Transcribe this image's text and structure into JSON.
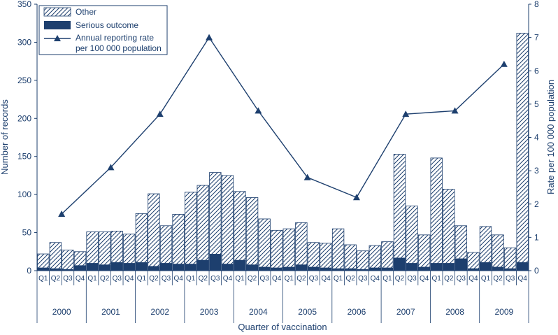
{
  "chart_data": {
    "type": "bar",
    "xlabel": "Quarter of vaccination",
    "ylabel": "Number of records",
    "y2label": "Rate per 100 000 population",
    "ylim": [
      0,
      350
    ],
    "y2lim": [
      0,
      8
    ],
    "yticks": [
      0,
      50,
      100,
      150,
      200,
      250,
      300,
      350
    ],
    "y2ticks": [
      0,
      1,
      2,
      3,
      4,
      5,
      6,
      7,
      8
    ],
    "quarters": [
      "Q1",
      "Q2",
      "Q3",
      "Q4"
    ],
    "years": [
      "2000",
      "2001",
      "2002",
      "2003",
      "2004",
      "2005",
      "2006",
      "2007",
      "2008",
      "2009"
    ],
    "series": [
      {
        "name": "Other",
        "pattern": "hatch",
        "total_values": [
          22,
          37,
          27,
          25,
          51,
          51,
          52,
          48,
          75,
          101,
          59,
          74,
          103,
          112,
          129,
          125,
          104,
          96,
          68,
          53,
          55,
          63,
          37,
          36,
          55,
          34,
          26,
          33,
          38,
          153,
          85,
          47,
          148,
          107,
          59,
          24,
          58,
          47,
          30,
          312
        ]
      },
      {
        "name": "Serious outcome",
        "color": "#1d3f6e",
        "values": [
          4,
          3,
          2,
          7,
          10,
          8,
          11,
          10,
          11,
          6,
          10,
          9,
          9,
          14,
          22,
          9,
          14,
          8,
          5,
          4,
          5,
          8,
          5,
          4,
          3,
          3,
          2,
          4,
          4,
          17,
          10,
          5,
          10,
          10,
          16,
          3,
          11,
          5,
          3,
          11
        ]
      },
      {
        "name": "Annual reporting rate per 100 000 population",
        "type": "line",
        "axis": "right",
        "x": [
          "2000",
          "2001",
          "2002",
          "2003",
          "2004",
          "2005",
          "2006",
          "2007",
          "2008",
          "2009"
        ],
        "values": [
          1.7,
          3.1,
          4.7,
          7.0,
          4.8,
          2.8,
          2.2,
          4.7,
          4.8,
          6.2
        ]
      }
    ],
    "legend": {
      "position": "top-left",
      "entries": [
        "Other",
        "Serious outcome",
        "Annual reporting rate",
        "per 100 000 population"
      ]
    },
    "colors": {
      "ink": "#1d3f6e"
    }
  }
}
